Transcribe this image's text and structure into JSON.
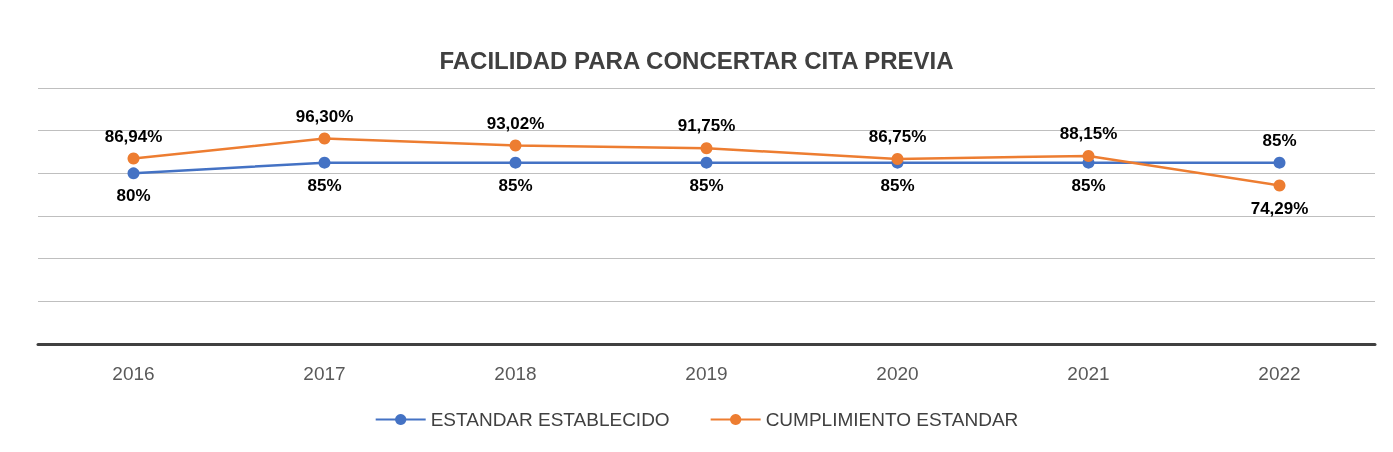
{
  "chart_data": {
    "type": "line",
    "title": "FACILIDAD PARA CONCERTAR CITA PREVIA",
    "categories": [
      "2016",
      "2017",
      "2018",
      "2019",
      "2020",
      "2021",
      "2022"
    ],
    "series": [
      {
        "name": "ESTANDAR ESTABLECIDO",
        "color": "#4472c4",
        "values": [
          80,
          85,
          85,
          85,
          85,
          85,
          85
        ],
        "value_labels": [
          "80%",
          "85%",
          "85%",
          "85%",
          "85%",
          "85%",
          "85%"
        ]
      },
      {
        "name": "CUMPLIMIENTO ESTANDAR",
        "color": "#ed7d31",
        "values": [
          86.94,
          96.3,
          93.02,
          91.75,
          86.75,
          88.15,
          74.29
        ],
        "value_labels": [
          "86,94%",
          "96,30%",
          "93,02%",
          "91,75%",
          "86,75%",
          "88,15%",
          "74,29%"
        ]
      }
    ],
    "ylim": [
      0,
      120
    ],
    "grid": "y",
    "legend": "bottom",
    "tick_labels": "x",
    "marker": "circle",
    "line_style": "solid"
  }
}
